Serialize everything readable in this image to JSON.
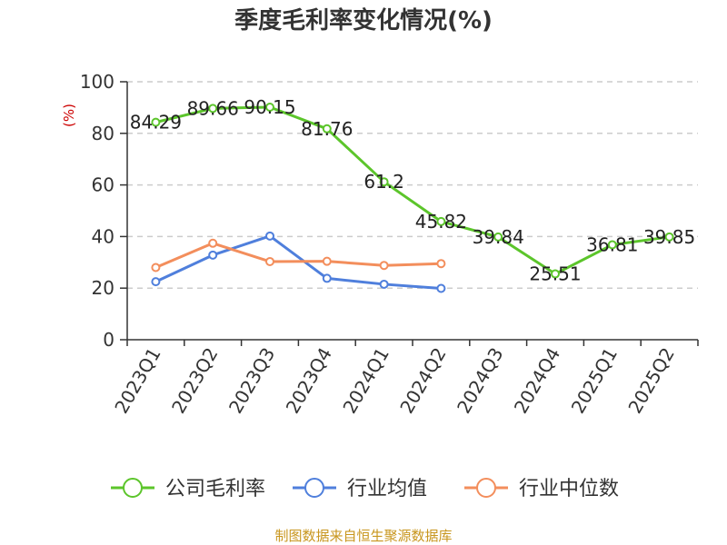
{
  "chart_data": {
    "type": "line",
    "title": "季度毛利率变化情况(%)",
    "unit_label": "(%)",
    "categories": [
      "2023Q1",
      "2023Q2",
      "2023Q3",
      "2023Q4",
      "2024Q1",
      "2024Q2",
      "2024Q3",
      "2024Q4",
      "2025Q1",
      "2025Q2"
    ],
    "ylim": [
      0,
      100
    ],
    "yticks": [
      0,
      20,
      40,
      60,
      80,
      100
    ],
    "grid": true,
    "legend_position": "bottom",
    "series": [
      {
        "name": "公司毛利率",
        "color": "#5cc52b",
        "values": [
          84.29,
          89.66,
          90.15,
          81.76,
          61.2,
          45.82,
          39.84,
          25.51,
          36.81,
          39.85
        ],
        "labels": [
          "84.29",
          "89.66",
          "90.15",
          "81.76",
          "61.2",
          "45.82",
          "39.84",
          "25.51",
          "36.81",
          "39.85"
        ]
      },
      {
        "name": "行业均值",
        "color": "#4f7fdc",
        "values": [
          22.5,
          32.8,
          40.2,
          23.8,
          21.5,
          19.9,
          null,
          null,
          null,
          null
        ]
      },
      {
        "name": "行业中位数",
        "color": "#f38e5c",
        "values": [
          28.0,
          37.4,
          30.3,
          30.4,
          28.8,
          29.5,
          null,
          null,
          null,
          null
        ]
      }
    ],
    "source": "制图数据来自恒生聚源数据库"
  }
}
